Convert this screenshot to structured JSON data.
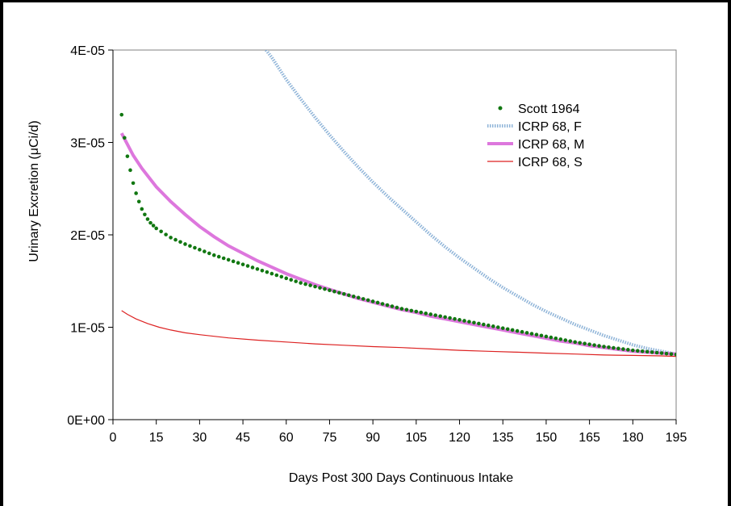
{
  "chart_data": {
    "type": "line",
    "xlabel": "Days Post 300 Days Continuous Intake",
    "ylabel": "Urinary Excretion (μCi/d)",
    "xlim": [
      0,
      195
    ],
    "ylim": [
      0,
      4e-05
    ],
    "x_ticks": [
      "0",
      "15",
      "30",
      "45",
      "60",
      "75",
      "90",
      "105",
      "120",
      "135",
      "150",
      "165",
      "180",
      "195"
    ],
    "y_ticks": [
      "0E+00",
      "1E-05",
      "2E-05",
      "3E-05",
      "4E-05"
    ],
    "x_tick_values": [
      0,
      15,
      30,
      45,
      60,
      75,
      90,
      105,
      120,
      135,
      150,
      165,
      180,
      195
    ],
    "y_tick_values": [
      0,
      1e-05,
      2e-05,
      3e-05,
      4e-05
    ],
    "grid": false,
    "legend_position": "top-right",
    "series": [
      {
        "name": "Scott 1964",
        "style": "dots",
        "color": "#117711",
        "x": [
          3,
          4,
          5,
          6,
          7,
          8,
          9,
          10,
          11,
          12,
          13,
          14,
          15,
          20,
          25,
          30,
          35,
          40,
          45,
          50,
          55,
          60,
          65,
          70,
          75,
          80,
          85,
          90,
          95,
          100,
          105,
          110,
          115,
          120,
          125,
          130,
          135,
          140,
          145,
          150,
          155,
          160,
          165,
          170,
          175,
          180,
          185,
          190,
          195
        ],
        "y": [
          3.3e-05,
          3.05e-05,
          2.85e-05,
          2.7e-05,
          2.56e-05,
          2.45e-05,
          2.36e-05,
          2.28e-05,
          2.22e-05,
          2.17e-05,
          2.13e-05,
          2.1e-05,
          2.07e-05,
          1.97e-05,
          1.9e-05,
          1.84e-05,
          1.78e-05,
          1.73e-05,
          1.68e-05,
          1.63e-05,
          1.58e-05,
          1.53e-05,
          1.48e-05,
          1.44e-05,
          1.4e-05,
          1.36e-05,
          1.32e-05,
          1.28e-05,
          1.24e-05,
          1.2e-05,
          1.17e-05,
          1.14e-05,
          1.11e-05,
          1.08e-05,
          1.05e-05,
          1.02e-05,
          9.9e-06,
          9.6e-06,
          9.3e-06,
          9e-06,
          8.7e-06,
          8.4e-06,
          8.15e-06,
          7.9e-06,
          7.7e-06,
          7.5e-06,
          7.35e-06,
          7.2e-06,
          7.05e-06
        ]
      },
      {
        "name": "ICRP 68, F",
        "style": "thick-dotted",
        "color": "#8fb4d8",
        "x": [
          53,
          55,
          60,
          65,
          70,
          75,
          80,
          85,
          90,
          95,
          100,
          105,
          110,
          115,
          120,
          125,
          130,
          135,
          140,
          145,
          150,
          155,
          160,
          165,
          170,
          175,
          180,
          185,
          190,
          195
        ],
        "y": [
          4e-05,
          3.92e-05,
          3.68e-05,
          3.47e-05,
          3.27e-05,
          3.08e-05,
          2.9e-05,
          2.73e-05,
          2.57e-05,
          2.42e-05,
          2.28e-05,
          2.14e-05,
          2e-05,
          1.87e-05,
          1.75e-05,
          1.64e-05,
          1.53e-05,
          1.43e-05,
          1.34e-05,
          1.25e-05,
          1.17e-05,
          1.1e-05,
          1.03e-05,
          9.7e-06,
          9.1e-06,
          8.6e-06,
          8.1e-06,
          7.7e-06,
          7.4e-06,
          7.1e-06
        ]
      },
      {
        "name": "ICRP 68, M",
        "style": "thick",
        "color": "#dd77dd",
        "x": [
          3,
          5,
          7,
          10,
          15,
          20,
          25,
          30,
          35,
          40,
          45,
          50,
          55,
          60,
          65,
          70,
          75,
          80,
          85,
          90,
          95,
          100,
          105,
          110,
          115,
          120,
          125,
          130,
          135,
          140,
          145,
          150,
          155,
          160,
          165,
          170,
          175,
          180,
          185,
          190,
          195
        ],
        "y": [
          3.1e-05,
          2.98e-05,
          2.86e-05,
          2.72e-05,
          2.52e-05,
          2.36e-05,
          2.22e-05,
          2.09e-05,
          1.98e-05,
          1.88e-05,
          1.8e-05,
          1.72e-05,
          1.65e-05,
          1.58e-05,
          1.52e-05,
          1.46e-05,
          1.41e-05,
          1.36e-05,
          1.31e-05,
          1.27e-05,
          1.23e-05,
          1.19e-05,
          1.16e-05,
          1.12e-05,
          1.09e-05,
          1.06e-05,
          1.03e-05,
          1e-05,
          9.7e-06,
          9.4e-06,
          9.1e-06,
          8.8e-06,
          8.5e-06,
          8.3e-06,
          8e-06,
          7.8e-06,
          7.6e-06,
          7.4e-06,
          7.3e-06,
          7.2e-06,
          7.1e-06
        ]
      },
      {
        "name": "ICRP 68, S",
        "style": "thin",
        "color": "#dd2222",
        "x": [
          3,
          5,
          8,
          12,
          16,
          20,
          25,
          30,
          40,
          50,
          60,
          70,
          80,
          90,
          100,
          110,
          120,
          130,
          140,
          150,
          160,
          170,
          180,
          190,
          195
        ],
        "y": [
          1.18e-05,
          1.14e-05,
          1.09e-05,
          1.04e-05,
          1e-05,
          9.7e-06,
          9.4e-06,
          9.2e-06,
          8.85e-06,
          8.6e-06,
          8.4e-06,
          8.2e-06,
          8.05e-06,
          7.9e-06,
          7.8e-06,
          7.65e-06,
          7.5e-06,
          7.4e-06,
          7.3e-06,
          7.2e-06,
          7.1e-06,
          7e-06,
          6.95e-06,
          6.9e-06,
          6.85e-06
        ]
      }
    ]
  }
}
